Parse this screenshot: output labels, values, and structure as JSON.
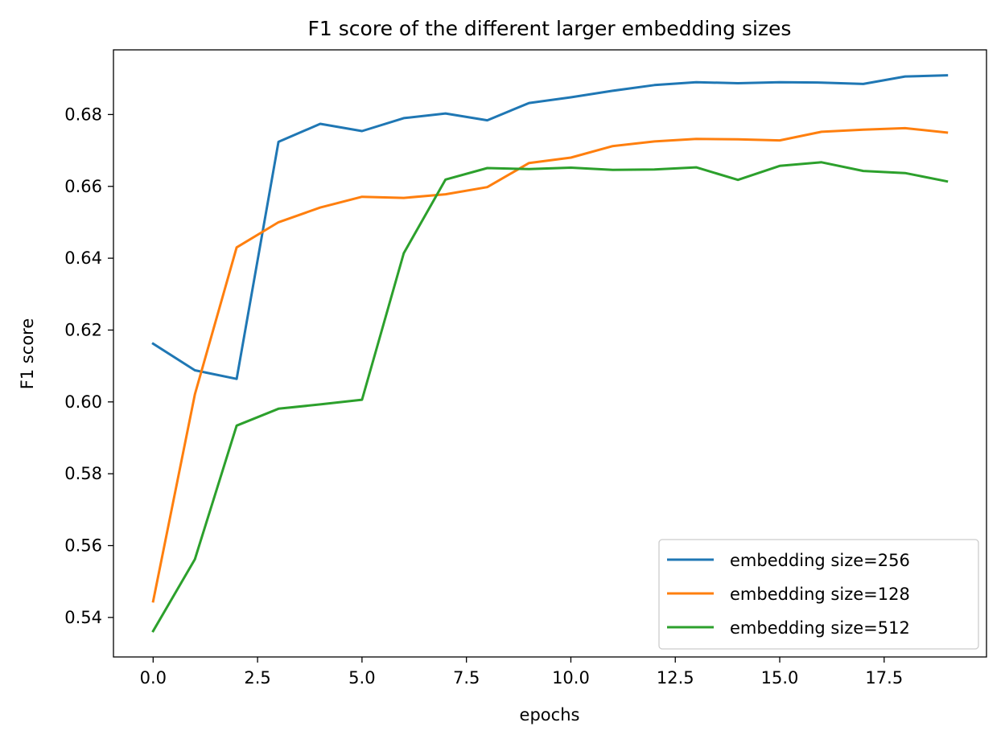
{
  "chart_data": {
    "type": "line",
    "title": "F1 score of the different larger embedding sizes",
    "xlabel": "epochs",
    "ylabel": "F1 score",
    "xlim": [
      -0.95,
      19.95
    ],
    "ylim": [
      0.529,
      0.698
    ],
    "grid": false,
    "legend_position": "lower-right",
    "x": [
      0,
      1,
      2,
      3,
      4,
      5,
      6,
      7,
      8,
      9,
      10,
      11,
      12,
      13,
      14,
      15,
      16,
      17,
      18,
      19
    ],
    "x_ticks": [
      0.0,
      2.5,
      5.0,
      7.5,
      10.0,
      12.5,
      15.0,
      17.5
    ],
    "x_tick_labels": [
      "0.0",
      "2.5",
      "5.0",
      "7.5",
      "10.0",
      "12.5",
      "15.0",
      "17.5"
    ],
    "y_ticks": [
      0.54,
      0.56,
      0.58,
      0.6,
      0.62,
      0.64,
      0.66,
      0.68
    ],
    "y_tick_labels": [
      "0.54",
      "0.56",
      "0.58",
      "0.60",
      "0.62",
      "0.64",
      "0.66",
      "0.68"
    ],
    "series": [
      {
        "name": "embedding size=256",
        "color": "#1f77b4",
        "values": [
          0.6162,
          0.6088,
          0.6064,
          0.6724,
          0.6774,
          0.6754,
          0.679,
          0.6803,
          0.6784,
          0.6832,
          0.6848,
          0.6866,
          0.6882,
          0.689,
          0.6887,
          0.689,
          0.6889,
          0.6885,
          0.6906,
          0.6909
        ]
      },
      {
        "name": "embedding size=128",
        "color": "#ff7f0e",
        "values": [
          0.5445,
          0.6021,
          0.643,
          0.65,
          0.6541,
          0.6571,
          0.6568,
          0.6578,
          0.6598,
          0.6665,
          0.668,
          0.6712,
          0.6725,
          0.6732,
          0.6731,
          0.6728,
          0.6752,
          0.6758,
          0.6762,
          0.675
        ]
      },
      {
        "name": "embedding size=512",
        "color": "#2ca02c",
        "values": [
          0.5362,
          0.5562,
          0.5934,
          0.5981,
          0.5993,
          0.6006,
          0.6414,
          0.6619,
          0.6651,
          0.6648,
          0.6652,
          0.6646,
          0.6647,
          0.6653,
          0.6618,
          0.6657,
          0.6667,
          0.6643,
          0.6637,
          0.6614
        ]
      }
    ]
  }
}
